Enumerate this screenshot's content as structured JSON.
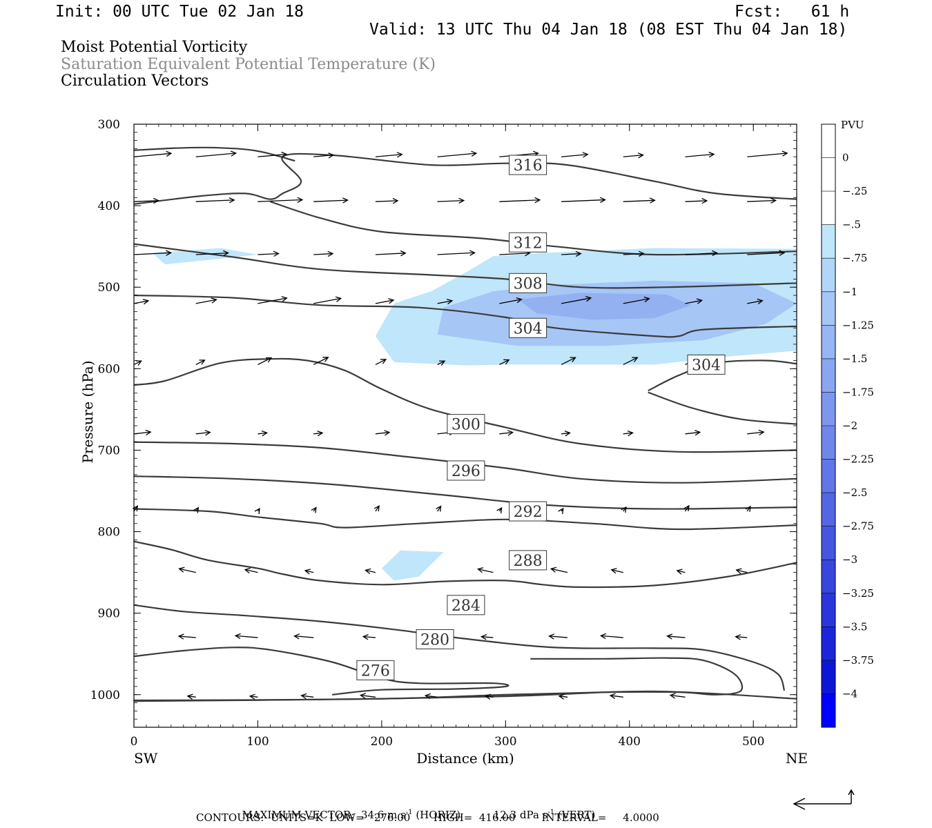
{
  "header": {
    "init": "Init: 00 UTC Tue 02 Jan 18",
    "fcst": "Fcst:   61 h",
    "valid": "Valid: 13 UTC Thu 04 Jan 18 (08 EST Thu 04 Jan 18)"
  },
  "fields": {
    "line1": "Moist Potential Vorticity",
    "line2": "Saturation Equivalent Potential Temperature (K)",
    "line3": "Circulation Vectors"
  },
  "footer": {
    "max_vector_label": "MAXIMUM VECTOR:",
    "horiz_value": "34.6 m s",
    "horiz_tail": "(HORIZ)",
    "vert_value": "12.3 dPa s",
    "vert_tail": "(VERT)",
    "exp": "-1",
    "contours_line": "CONTOURS:  UNITS=K  LOW=   276.00       HIGH=  416.00        INTERVAL=     4.0000"
  },
  "colors": {
    "shade_light": "#bfe6fa",
    "shade_mid": "#a6c6f6",
    "shade_dark": "#93b0f0",
    "contour": "#3a3a3a"
  },
  "chart_data": {
    "type": "contour",
    "xlabel": "Distance (km)",
    "ylabel": "Pressure (hPa)",
    "x_end_labels": {
      "left": "SW",
      "right": "NE"
    },
    "xlim": [
      0,
      535
    ],
    "ylim": [
      1040,
      300
    ],
    "x_ticks": [
      0,
      100,
      200,
      300,
      400,
      500
    ],
    "y_ticks": [
      300,
      400,
      500,
      600,
      700,
      800,
      900,
      1000
    ],
    "colorbar": {
      "unit": "PVU",
      "labels": [
        "0",
        "-.25",
        "-.5",
        "-.75",
        "-1",
        "-1.25",
        "-1.5",
        "-1.75",
        "-2",
        "-2.25",
        "-2.5",
        "-2.75",
        "-3",
        "-3.25",
        "-3.5",
        "-3.75",
        "-4"
      ],
      "colors": [
        "#ffffff",
        "#ffffff",
        "#bfe6fa",
        "#b3d6f8",
        "#a6c6f6",
        "#98b6f3",
        "#8ba6f0",
        "#7e96ed",
        "#7086ea",
        "#6276e7",
        "#5466e4",
        "#4656e1",
        "#3846de",
        "#2a36db",
        "#1c26d8",
        "#0e16d5",
        "#0000ff"
      ]
    },
    "contour_labels": [
      {
        "value": "316",
        "x": 318,
        "p": 350
      },
      {
        "value": "312",
        "x": 318,
        "p": 445
      },
      {
        "value": "308",
        "x": 318,
        "p": 495
      },
      {
        "value": "304",
        "x": 318,
        "p": 550
      },
      {
        "value": "304",
        "x": 462,
        "p": 595
      },
      {
        "value": "300",
        "x": 268,
        "p": 668
      },
      {
        "value": "296",
        "x": 268,
        "p": 725
      },
      {
        "value": "292",
        "x": 318,
        "p": 775
      },
      {
        "value": "288",
        "x": 318,
        "p": 835
      },
      {
        "value": "284",
        "x": 268,
        "p": 890
      },
      {
        "value": "280",
        "x": 243,
        "p": 932
      },
      {
        "value": "276",
        "x": 195,
        "p": 970
      }
    ],
    "theta_e_lines": [
      [
        [
          0,
          332
        ],
        [
          40,
          329
        ],
        [
          70,
          329
        ],
        [
          100,
          333
        ],
        [
          130,
          345
        ]
      ],
      [
        [
          0,
          398
        ],
        [
          55,
          388
        ],
        [
          90,
          385
        ],
        [
          110,
          392
        ],
        [
          120,
          385
        ],
        [
          135,
          370
        ],
        [
          120,
          340
        ],
        [
          160,
          338
        ],
        [
          240,
          350
        ],
        [
          300,
          348
        ],
        [
          350,
          350
        ],
        [
          420,
          370
        ],
        [
          470,
          385
        ],
        [
          535,
          392
        ]
      ],
      [
        [
          110,
          395
        ],
        [
          150,
          415
        ],
        [
          200,
          432
        ],
        [
          280,
          440
        ],
        [
          340,
          450
        ],
        [
          420,
          460
        ],
        [
          535,
          456
        ]
      ],
      [
        [
          0,
          447
        ],
        [
          80,
          463
        ],
        [
          150,
          478
        ],
        [
          240,
          485
        ],
        [
          300,
          490
        ],
        [
          360,
          500
        ],
        [
          430,
          500
        ],
        [
          535,
          495
        ]
      ],
      [
        [
          0,
          510
        ],
        [
          80,
          513
        ],
        [
          150,
          522
        ],
        [
          230,
          525
        ],
        [
          300,
          537
        ],
        [
          340,
          550
        ],
        [
          420,
          560
        ],
        [
          440,
          560
        ],
        [
          460,
          552
        ],
        [
          535,
          548
        ]
      ],
      [
        [
          0,
          620
        ],
        [
          25,
          615
        ],
        [
          70,
          593
        ],
        [
          110,
          588
        ],
        [
          140,
          590
        ],
        [
          170,
          602
        ],
        [
          200,
          625
        ],
        [
          240,
          650
        ],
        [
          300,
          672
        ],
        [
          360,
          692
        ],
        [
          440,
          702
        ],
        [
          535,
          700
        ]
      ],
      [
        [
          415,
          627
        ],
        [
          440,
          608
        ],
        [
          470,
          593
        ],
        [
          510,
          590
        ],
        [
          535,
          594
        ]
      ],
      [
        [
          415,
          629
        ],
        [
          450,
          648
        ],
        [
          490,
          662
        ],
        [
          535,
          668
        ]
      ],
      [
        [
          0,
          690
        ],
        [
          80,
          692
        ],
        [
          150,
          697
        ],
        [
          220,
          708
        ],
        [
          300,
          722
        ],
        [
          360,
          735
        ],
        [
          440,
          740
        ],
        [
          535,
          735
        ]
      ],
      [
        [
          0,
          732
        ],
        [
          80,
          735
        ],
        [
          160,
          742
        ],
        [
          250,
          755
        ],
        [
          330,
          767
        ],
        [
          420,
          772
        ],
        [
          535,
          770
        ]
      ],
      [
        [
          0,
          772
        ],
        [
          60,
          775
        ],
        [
          100,
          782
        ],
        [
          150,
          790
        ],
        [
          170,
          795
        ],
        [
          230,
          790
        ],
        [
          300,
          785
        ],
        [
          370,
          790
        ],
        [
          440,
          797
        ],
        [
          535,
          792
        ]
      ],
      [
        [
          0,
          812
        ],
        [
          30,
          822
        ],
        [
          60,
          835
        ],
        [
          100,
          845
        ],
        [
          120,
          852
        ],
        [
          150,
          860
        ],
        [
          200,
          865
        ],
        [
          250,
          861
        ],
        [
          300,
          860
        ],
        [
          330,
          865
        ],
        [
          360,
          868
        ],
        [
          420,
          866
        ],
        [
          480,
          855
        ],
        [
          535,
          838
        ]
      ],
      [
        [
          0,
          890
        ],
        [
          40,
          898
        ],
        [
          90,
          903
        ],
        [
          150,
          910
        ],
        [
          210,
          920
        ],
        [
          260,
          930
        ],
        [
          320,
          940
        ],
        [
          360,
          943
        ],
        [
          420,
          943
        ],
        [
          460,
          945
        ],
        [
          500,
          960
        ],
        [
          520,
          975
        ],
        [
          525,
          995
        ]
      ],
      [
        [
          0,
          953
        ],
        [
          40,
          946
        ],
        [
          80,
          942
        ],
        [
          110,
          945
        ],
        [
          160,
          960
        ],
        [
          200,
          980
        ],
        [
          230,
          986
        ],
        [
          290,
          986
        ],
        [
          300,
          990
        ],
        [
          260,
          993
        ],
        [
          200,
          994
        ],
        [
          160,
          1000
        ]
      ],
      [
        [
          0,
          1008
        ],
        [
          200,
          1005
        ],
        [
          300,
          1000
        ],
        [
          380,
          997
        ],
        [
          440,
          997
        ],
        [
          470,
          1000
        ],
        [
          490,
          995
        ],
        [
          485,
          975
        ],
        [
          460,
          958
        ],
        [
          430,
          955
        ],
        [
          380,
          956
        ],
        [
          320,
          956
        ]
      ],
      [
        [
          0,
          1007
        ],
        [
          150,
          1006
        ],
        [
          300,
          1002
        ],
        [
          420,
          996
        ],
        [
          535,
          1005
        ]
      ]
    ],
    "pv_regions": [
      {
        "level": "-.25 to -.5",
        "polygon": [
          [
            15,
            458
          ],
          [
            70,
            452
          ],
          [
            100,
            460
          ],
          [
            70,
            465
          ],
          [
            25,
            472
          ]
        ]
      },
      {
        "level": "-.25 to -.5",
        "polygon": [
          [
            195,
            560
          ],
          [
            210,
            520
          ],
          [
            240,
            505
          ],
          [
            270,
            480
          ],
          [
            290,
            462
          ],
          [
            330,
            458
          ],
          [
            420,
            452
          ],
          [
            535,
            453
          ],
          [
            535,
            578
          ],
          [
            480,
            585
          ],
          [
            420,
            595
          ],
          [
            300,
            595
          ],
          [
            270,
            596
          ],
          [
            210,
            592
          ]
        ]
      },
      {
        "level": "-.5 to -.75",
        "polygon": [
          [
            250,
            525
          ],
          [
            290,
            505
          ],
          [
            340,
            497
          ],
          [
            420,
            492
          ],
          [
            500,
            495
          ],
          [
            535,
            520
          ],
          [
            510,
            545
          ],
          [
            460,
            565
          ],
          [
            380,
            572
          ],
          [
            310,
            572
          ],
          [
            245,
            558
          ]
        ]
      },
      {
        "level": "-.75 to -1",
        "polygon": [
          [
            310,
            515
          ],
          [
            360,
            507
          ],
          [
            430,
            509
          ],
          [
            450,
            522
          ],
          [
            420,
            538
          ],
          [
            370,
            540
          ],
          [
            325,
            532
          ]
        ]
      },
      {
        "level": "-.25 to -.5",
        "polygon": [
          [
            200,
            845
          ],
          [
            215,
            823
          ],
          [
            250,
            825
          ],
          [
            230,
            855
          ],
          [
            210,
            860
          ]
        ]
      }
    ]
  }
}
